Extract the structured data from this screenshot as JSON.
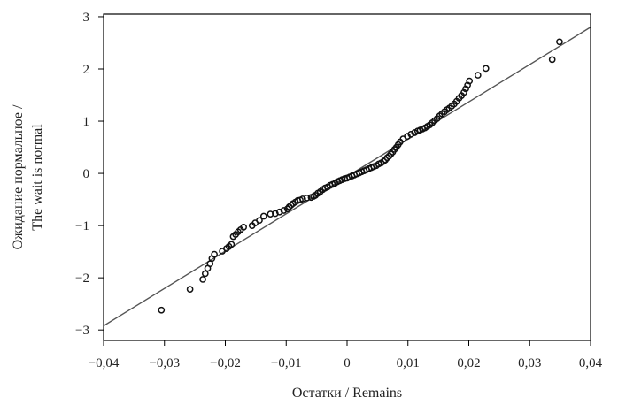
{
  "chart_data": {
    "type": "scatter",
    "xlabel": "Остатки / Remains",
    "ylabel_lines": [
      "Ожидание нормальное /",
      "The wait is normal"
    ],
    "xlim": [
      -0.04,
      0.04
    ],
    "ylim": [
      -3.2,
      3.05
    ],
    "x_ticks": [
      -0.04,
      -0.03,
      -0.02,
      -0.01,
      0,
      0.01,
      0.02,
      0.03,
      0.04
    ],
    "x_tick_labels": [
      "−0,04",
      "−0,03",
      "−0,02",
      "−0,01",
      "0",
      "0,01",
      "0,02",
      "0,03",
      "0,04"
    ],
    "y_ticks": [
      3,
      2,
      1,
      0,
      -1,
      -2,
      -3
    ],
    "y_tick_labels": [
      "3",
      "2",
      "1",
      "0",
      "−1",
      "−2",
      "−3"
    ],
    "grid": false,
    "reference_line": {
      "x": [
        -0.04,
        0.04
      ],
      "y": [
        -2.92,
        2.8
      ]
    },
    "points": {
      "x": [
        -0.0305,
        -0.0258,
        -0.0237,
        -0.0233,
        -0.0229,
        -0.0225,
        -0.0222,
        -0.0218,
        -0.0205,
        -0.0198,
        -0.0194,
        -0.019,
        -0.0187,
        -0.0183,
        -0.0179,
        -0.0175,
        -0.017,
        -0.0156,
        -0.0151,
        -0.0144,
        -0.0137,
        -0.0126,
        -0.0118,
        -0.0111,
        -0.0104,
        -0.0098,
        -0.0095,
        -0.0092,
        -0.0089,
        -0.0085,
        -0.0081,
        -0.0077,
        -0.0073,
        -0.0066,
        -0.0059,
        -0.0055,
        -0.0052,
        -0.0048,
        -0.0044,
        -0.004,
        -0.0036,
        -0.0032,
        -0.0028,
        -0.0024,
        -0.002,
        -0.0016,
        -0.0012,
        -0.0008,
        -0.0004,
        0.0,
        0.0004,
        0.0008,
        0.0012,
        0.0016,
        0.002,
        0.0024,
        0.0028,
        0.0032,
        0.0036,
        0.004,
        0.0044,
        0.0048,
        0.0052,
        0.0056,
        0.006,
        0.0063,
        0.0066,
        0.0069,
        0.0072,
        0.0075,
        0.0078,
        0.0081,
        0.0084,
        0.0087,
        0.0092,
        0.0099,
        0.0105,
        0.0111,
        0.0116,
        0.012,
        0.0124,
        0.0128,
        0.0132,
        0.0136,
        0.014,
        0.0144,
        0.0148,
        0.0152,
        0.0156,
        0.016,
        0.0164,
        0.0168,
        0.0172,
        0.0176,
        0.018,
        0.0184,
        0.0188,
        0.0192,
        0.0195,
        0.0198,
        0.0201,
        0.0215,
        0.0228,
        0.0337,
        0.0349
      ],
      "y": [
        -2.62,
        -2.22,
        -2.03,
        -1.92,
        -1.82,
        -1.73,
        -1.63,
        -1.55,
        -1.49,
        -1.44,
        -1.4,
        -1.36,
        -1.21,
        -1.17,
        -1.12,
        -1.08,
        -1.03,
        -1.0,
        -0.95,
        -0.9,
        -0.82,
        -0.78,
        -0.77,
        -0.74,
        -0.71,
        -0.68,
        -0.64,
        -0.61,
        -0.58,
        -0.55,
        -0.52,
        -0.51,
        -0.49,
        -0.47,
        -0.46,
        -0.44,
        -0.42,
        -0.38,
        -0.35,
        -0.31,
        -0.28,
        -0.26,
        -0.23,
        -0.21,
        -0.19,
        -0.16,
        -0.14,
        -0.12,
        -0.1,
        -0.09,
        -0.07,
        -0.05,
        -0.03,
        -0.01,
        0.01,
        0.03,
        0.05,
        0.07,
        0.09,
        0.11,
        0.13,
        0.15,
        0.18,
        0.2,
        0.23,
        0.26,
        0.3,
        0.33,
        0.37,
        0.41,
        0.46,
        0.5,
        0.55,
        0.6,
        0.66,
        0.71,
        0.75,
        0.78,
        0.81,
        0.83,
        0.85,
        0.87,
        0.9,
        0.93,
        0.97,
        1.01,
        1.05,
        1.1,
        1.14,
        1.18,
        1.22,
        1.25,
        1.29,
        1.33,
        1.38,
        1.44,
        1.49,
        1.55,
        1.62,
        1.69,
        1.77,
        1.88,
        2.01,
        2.18,
        2.52
      ]
    }
  }
}
